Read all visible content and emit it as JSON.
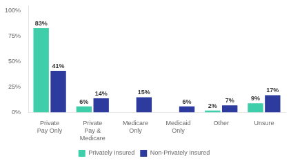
{
  "chart_data": {
    "type": "bar",
    "categories": [
      "Private\nPay Only",
      "Private\nPay &\nMedicare",
      "Medicare\nOnly",
      "Medicaid\nOnly",
      "Other",
      "Unsure"
    ],
    "series": [
      {
        "name": "Privately Insured",
        "color": "#3ecfaa",
        "values": [
          83,
          6,
          0,
          0,
          2,
          9
        ],
        "value_labels": [
          "83%",
          "6%",
          null,
          null,
          "2%",
          "9%"
        ]
      },
      {
        "name": "Non-Privately Insured",
        "color": "#2e3b9e",
        "values": [
          41,
          14,
          15,
          6,
          7,
          17
        ],
        "value_labels": [
          "41%",
          "14%",
          "15%",
          "6%",
          "7%",
          "17%"
        ]
      }
    ],
    "ylim": [
      0,
      105
    ],
    "yticks": [
      {
        "value": 0,
        "label": "0%"
      },
      {
        "value": 25,
        "label": "25%"
      },
      {
        "value": 50,
        "label": "50%"
      },
      {
        "value": 75,
        "label": "75%"
      },
      {
        "value": 100,
        "label": "100%"
      }
    ],
    "grid": false,
    "legend": "bottom",
    "data_labels": true
  }
}
